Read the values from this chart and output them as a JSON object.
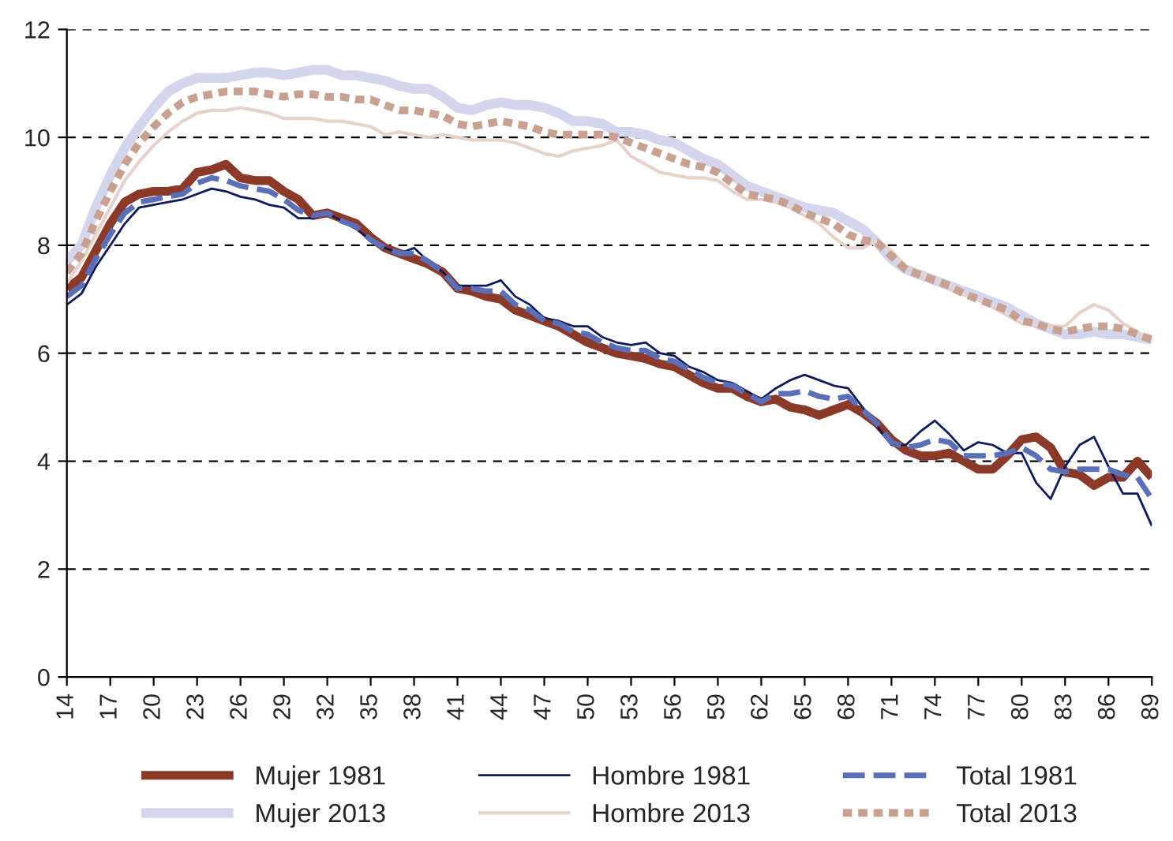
{
  "chart_data": {
    "type": "line",
    "x": [
      14,
      15,
      16,
      17,
      18,
      19,
      20,
      21,
      22,
      23,
      24,
      25,
      26,
      27,
      28,
      29,
      30,
      31,
      32,
      33,
      34,
      35,
      36,
      37,
      38,
      39,
      40,
      41,
      42,
      43,
      44,
      45,
      46,
      47,
      48,
      49,
      50,
      51,
      52,
      53,
      54,
      55,
      56,
      57,
      58,
      59,
      60,
      61,
      62,
      63,
      64,
      65,
      66,
      67,
      68,
      69,
      70,
      71,
      72,
      73,
      74,
      75,
      76,
      77,
      78,
      79,
      80,
      81,
      82,
      83,
      84,
      85,
      86,
      87,
      88,
      89
    ],
    "series": [
      {
        "name": "Mujer 1981",
        "color": "#8b3a2a",
        "line_style": "solid",
        "values": [
          7.2,
          7.4,
          7.9,
          8.4,
          8.8,
          8.95,
          9.0,
          9.0,
          9.05,
          9.35,
          9.4,
          9.5,
          9.25,
          9.2,
          9.2,
          9.0,
          8.85,
          8.55,
          8.6,
          8.5,
          8.4,
          8.15,
          7.95,
          7.85,
          7.75,
          7.65,
          7.5,
          7.2,
          7.15,
          7.05,
          7.0,
          6.8,
          6.7,
          6.6,
          6.5,
          6.35,
          6.2,
          6.1,
          6.0,
          5.95,
          5.9,
          5.8,
          5.75,
          5.6,
          5.45,
          5.35,
          5.35,
          5.2,
          5.1,
          5.15,
          5.0,
          4.95,
          4.85,
          4.95,
          5.05,
          4.9,
          4.7,
          4.4,
          4.2,
          4.1,
          4.1,
          4.15,
          4.0,
          3.85,
          3.85,
          4.1,
          4.4,
          4.45,
          4.25,
          3.8,
          3.75,
          3.55,
          3.7,
          3.7,
          4.0,
          3.7
        ]
      },
      {
        "name": "Hombre 1981",
        "color": "#0d1a5c",
        "line_style": "solid",
        "values": [
          6.9,
          7.1,
          7.6,
          8.0,
          8.4,
          8.7,
          8.75,
          8.8,
          8.85,
          8.95,
          9.05,
          9.0,
          8.9,
          8.85,
          8.75,
          8.7,
          8.5,
          8.5,
          8.6,
          8.45,
          8.3,
          8.1,
          7.95,
          7.85,
          7.95,
          7.7,
          7.5,
          7.25,
          7.25,
          7.25,
          7.35,
          7.05,
          6.9,
          6.65,
          6.6,
          6.5,
          6.5,
          6.3,
          6.2,
          6.15,
          6.2,
          6.0,
          5.95,
          5.75,
          5.65,
          5.5,
          5.45,
          5.3,
          5.15,
          5.35,
          5.5,
          5.6,
          5.5,
          5.4,
          5.35,
          5.0,
          4.65,
          4.3,
          4.3,
          4.55,
          4.75,
          4.5,
          4.2,
          4.35,
          4.3,
          4.15,
          4.15,
          3.6,
          3.3,
          3.9,
          4.3,
          4.45,
          3.9,
          3.4,
          3.4,
          2.8
        ]
      },
      {
        "name": "Total 1981",
        "color": "#5b6fb8",
        "line_style": "dashed",
        "values": [
          7.05,
          7.25,
          7.75,
          8.2,
          8.6,
          8.8,
          8.85,
          8.9,
          8.95,
          9.15,
          9.25,
          9.2,
          9.1,
          9.05,
          9.0,
          8.85,
          8.65,
          8.55,
          8.6,
          8.45,
          8.35,
          8.1,
          7.95,
          7.85,
          7.85,
          7.7,
          7.5,
          7.2,
          7.2,
          7.15,
          7.15,
          6.9,
          6.8,
          6.6,
          6.55,
          6.4,
          6.35,
          6.2,
          6.1,
          6.05,
          6.05,
          5.9,
          5.85,
          5.7,
          5.55,
          5.45,
          5.4,
          5.25,
          5.1,
          5.25,
          5.25,
          5.3,
          5.2,
          5.15,
          5.2,
          4.95,
          4.7,
          4.35,
          4.25,
          4.3,
          4.4,
          4.35,
          4.1,
          4.1,
          4.1,
          4.15,
          4.25,
          4.1,
          3.85,
          3.8,
          3.85,
          3.85,
          3.85,
          3.75,
          3.7,
          3.3
        ]
      },
      {
        "name": "Mujer 2013",
        "color": "#d4d6ee",
        "line_style": "solid",
        "values": [
          7.7,
          8.0,
          8.7,
          9.3,
          9.8,
          10.2,
          10.55,
          10.85,
          11.0,
          11.1,
          11.1,
          11.1,
          11.15,
          11.2,
          11.2,
          11.15,
          11.2,
          11.25,
          11.25,
          11.15,
          11.15,
          11.1,
          11.05,
          10.95,
          10.9,
          10.9,
          10.75,
          10.55,
          10.5,
          10.6,
          10.65,
          10.6,
          10.6,
          10.55,
          10.45,
          10.3,
          10.3,
          10.25,
          10.1,
          10.1,
          10.05,
          9.95,
          9.9,
          9.75,
          9.6,
          9.5,
          9.3,
          9.1,
          9.0,
          8.9,
          8.8,
          8.7,
          8.65,
          8.6,
          8.45,
          8.3,
          8.05,
          7.75,
          7.55,
          7.45,
          7.35,
          7.25,
          7.15,
          7.05,
          6.95,
          6.85,
          6.7,
          6.55,
          6.45,
          6.35,
          6.35,
          6.4,
          6.35,
          6.35,
          6.3,
          6.25
        ]
      },
      {
        "name": "Hombre 2013",
        "color": "#e8d3cc",
        "line_style": "solid",
        "values": [
          7.3,
          7.7,
          8.2,
          8.7,
          9.2,
          9.55,
          9.85,
          10.1,
          10.3,
          10.45,
          10.5,
          10.5,
          10.55,
          10.5,
          10.45,
          10.35,
          10.35,
          10.35,
          10.3,
          10.3,
          10.25,
          10.2,
          10.05,
          10.1,
          10.05,
          10.0,
          10.05,
          10.0,
          9.95,
          9.95,
          9.95,
          9.9,
          9.8,
          9.7,
          9.65,
          9.75,
          9.8,
          9.85,
          9.95,
          9.65,
          9.5,
          9.35,
          9.3,
          9.25,
          9.25,
          9.2,
          9.0,
          8.85,
          8.85,
          8.8,
          8.7,
          8.55,
          8.4,
          8.15,
          7.95,
          7.95,
          8.1,
          7.9,
          7.6,
          7.45,
          7.35,
          7.25,
          7.1,
          7.0,
          6.85,
          6.7,
          6.55,
          6.55,
          6.5,
          6.5,
          6.75,
          6.9,
          6.8,
          6.55,
          6.4,
          6.2
        ]
      },
      {
        "name": "Total 2013",
        "color": "#c9a192",
        "line_style": "dotted",
        "values": [
          7.5,
          7.85,
          8.45,
          9.0,
          9.5,
          9.9,
          10.2,
          10.45,
          10.65,
          10.75,
          10.8,
          10.85,
          10.85,
          10.85,
          10.8,
          10.75,
          10.8,
          10.8,
          10.75,
          10.75,
          10.7,
          10.7,
          10.6,
          10.5,
          10.5,
          10.45,
          10.4,
          10.25,
          10.2,
          10.25,
          10.3,
          10.25,
          10.2,
          10.1,
          10.05,
          10.05,
          10.05,
          10.05,
          10.0,
          9.9,
          9.8,
          9.7,
          9.6,
          9.5,
          9.45,
          9.35,
          9.15,
          8.95,
          8.9,
          8.85,
          8.75,
          8.6,
          8.5,
          8.4,
          8.2,
          8.1,
          8.05,
          7.8,
          7.55,
          7.45,
          7.35,
          7.25,
          7.1,
          7.0,
          6.9,
          6.8,
          6.6,
          6.55,
          6.45,
          6.4,
          6.45,
          6.5,
          6.5,
          6.45,
          6.35,
          6.25
        ]
      }
    ],
    "xlim": [
      14,
      89
    ],
    "xticks": [
      14,
      17,
      20,
      23,
      26,
      29,
      32,
      35,
      38,
      41,
      44,
      47,
      50,
      53,
      56,
      59,
      62,
      65,
      68,
      71,
      74,
      77,
      80,
      83,
      86,
      89
    ],
    "ylim": [
      0,
      12
    ],
    "yticks": [
      0,
      2,
      4,
      6,
      8,
      10,
      12
    ],
    "grid": "y",
    "legend": "bottom"
  }
}
